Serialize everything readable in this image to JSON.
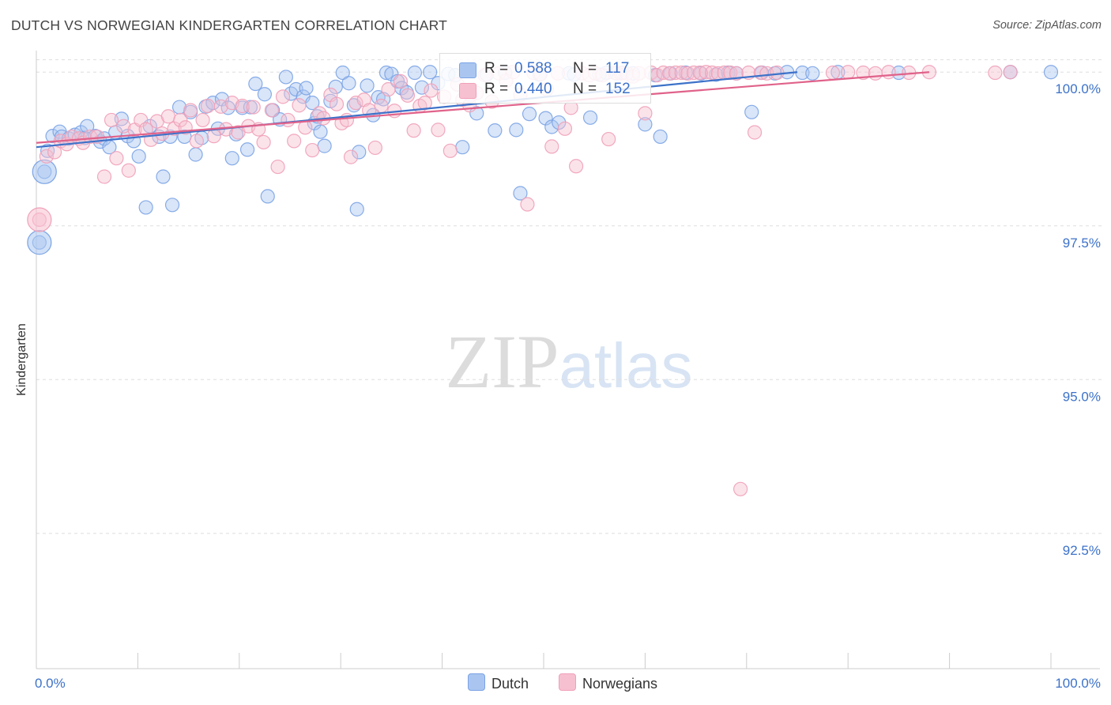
{
  "chart_data": {
    "type": "scatter",
    "title": "DUTCH VS NORWEGIAN KINDERGARTEN CORRELATION CHART",
    "source": "Source: ZipAtlas.com",
    "ylabel": "Kindergarten",
    "xlabel": "",
    "xlim": [
      0,
      100
    ],
    "ylim": [
      90.3,
      100.35
    ],
    "x_tick_labels": {
      "left": "0.0%",
      "right": "100.0%"
    },
    "y_ticks": [
      {
        "value": 100.0,
        "label": "100.0%"
      },
      {
        "value": 97.5,
        "label": "97.5%"
      },
      {
        "value": 95.0,
        "label": "95.0%"
      },
      {
        "value": 92.5,
        "label": "92.5%"
      }
    ],
    "grid": true,
    "watermark": "ZIPatlas",
    "legend": {
      "placement": "top-center",
      "r_label": "R =",
      "n_label": "N =",
      "entries": [
        {
          "series": "Dutch",
          "r": "0.588",
          "n": "117"
        },
        {
          "series": "Norwegians",
          "r": "0.440",
          "n": "152"
        }
      ]
    },
    "series": [
      {
        "name": "Dutch",
        "color": "#7aa3e5",
        "fill": "#aac6f0",
        "line_color": "#3d72c9",
        "trend": {
          "x": [
            0,
            75
          ],
          "y": [
            98.78,
            100.0
          ]
        },
        "points": [
          [
            0.3,
            97.23
          ],
          [
            0.8,
            98.38
          ],
          [
            1.1,
            98.72
          ],
          [
            1.6,
            98.96
          ],
          [
            2.3,
            99.03
          ],
          [
            2.5,
            98.95
          ],
          [
            3.2,
            98.92
          ],
          [
            3.8,
            98.98
          ],
          [
            4.4,
            99.02
          ],
          [
            4.8,
            98.93
          ],
          [
            5.0,
            99.12
          ],
          [
            5.8,
            98.96
          ],
          [
            6.3,
            98.87
          ],
          [
            6.7,
            98.92
          ],
          [
            7.2,
            98.78
          ],
          [
            7.8,
            99.02
          ],
          [
            8.4,
            99.24
          ],
          [
            9.0,
            98.96
          ],
          [
            9.6,
            98.88
          ],
          [
            10.1,
            98.63
          ],
          [
            10.8,
            97.8
          ],
          [
            11.2,
            99.12
          ],
          [
            12.1,
            98.95
          ],
          [
            12.5,
            98.3
          ],
          [
            13.2,
            98.95
          ],
          [
            13.4,
            97.84
          ],
          [
            14.1,
            99.43
          ],
          [
            14.6,
            98.95
          ],
          [
            15.2,
            99.35
          ],
          [
            15.7,
            98.66
          ],
          [
            16.3,
            98.93
          ],
          [
            16.7,
            99.44
          ],
          [
            17.4,
            99.5
          ],
          [
            17.9,
            99.08
          ],
          [
            18.3,
            99.56
          ],
          [
            18.9,
            99.42
          ],
          [
            19.3,
            98.6
          ],
          [
            19.7,
            98.99
          ],
          [
            20.3,
            99.42
          ],
          [
            20.8,
            98.74
          ],
          [
            21.1,
            99.43
          ],
          [
            21.6,
            99.81
          ],
          [
            22.5,
            99.64
          ],
          [
            22.8,
            97.98
          ],
          [
            23.3,
            99.38
          ],
          [
            24.0,
            99.23
          ],
          [
            24.6,
            99.92
          ],
          [
            25.1,
            99.65
          ],
          [
            25.6,
            99.72
          ],
          [
            26.3,
            99.6
          ],
          [
            26.6,
            99.74
          ],
          [
            27.2,
            99.5
          ],
          [
            27.4,
            99.17
          ],
          [
            27.7,
            99.28
          ],
          [
            28.0,
            99.03
          ],
          [
            28.4,
            98.8
          ],
          [
            29.0,
            99.53
          ],
          [
            29.5,
            99.76
          ],
          [
            30.2,
            99.99
          ],
          [
            30.8,
            99.82
          ],
          [
            31.3,
            99.46
          ],
          [
            31.6,
            97.77
          ],
          [
            31.8,
            98.7
          ],
          [
            32.6,
            99.78
          ],
          [
            33.2,
            99.3
          ],
          [
            33.7,
            99.59
          ],
          [
            34.2,
            99.56
          ],
          [
            34.5,
            99.99
          ],
          [
            35.0,
            99.97
          ],
          [
            35.6,
            99.85
          ],
          [
            36.0,
            99.74
          ],
          [
            36.5,
            99.67
          ],
          [
            37.3,
            99.99
          ],
          [
            38.0,
            99.75
          ],
          [
            38.8,
            100.0
          ],
          [
            39.6,
            99.82
          ],
          [
            40.6,
            99.97
          ],
          [
            41.3,
            99.95
          ],
          [
            42.0,
            98.78
          ],
          [
            42.8,
            99.62
          ],
          [
            43.4,
            99.33
          ],
          [
            44.4,
            99.96
          ],
          [
            45.2,
            99.05
          ],
          [
            46.2,
            99.99
          ],
          [
            47.3,
            99.06
          ],
          [
            47.7,
            98.03
          ],
          [
            48.6,
            99.32
          ],
          [
            49.6,
            99.96
          ],
          [
            50.2,
            99.25
          ],
          [
            50.8,
            99.11
          ],
          [
            51.5,
            99.18
          ],
          [
            52.5,
            99.98
          ],
          [
            53.0,
            99.96
          ],
          [
            54.6,
            99.26
          ],
          [
            55.5,
            99.96
          ],
          [
            56.2,
            99.99
          ],
          [
            57.2,
            99.98
          ],
          [
            57.8,
            99.99
          ],
          [
            58.8,
            99.98
          ],
          [
            60.0,
            99.15
          ],
          [
            61.0,
            99.95
          ],
          [
            61.5,
            98.95
          ],
          [
            62.5,
            99.98
          ],
          [
            64.0,
            99.99
          ],
          [
            65.5,
            99.98
          ],
          [
            67.0,
            99.96
          ],
          [
            68.2,
            99.99
          ],
          [
            69.0,
            99.98
          ],
          [
            70.5,
            99.35
          ],
          [
            71.5,
            99.99
          ],
          [
            72.8,
            99.98
          ],
          [
            74.0,
            100.0
          ],
          [
            75.5,
            99.99
          ],
          [
            76.5,
            99.98
          ],
          [
            79.0,
            100.0
          ],
          [
            85.0,
            99.99
          ],
          [
            96.0,
            100.0
          ],
          [
            100.0,
            100.0
          ]
        ],
        "big_points": [
          [
            0.3,
            97.23
          ],
          [
            0.8,
            98.38
          ]
        ]
      },
      {
        "name": "Norwegians",
        "color": "#f0a0b8",
        "fill": "#f7c0d0",
        "line_color": "#e0628a",
        "trend": {
          "x": [
            0,
            88
          ],
          "y": [
            98.85,
            100.0
          ]
        },
        "points": [
          [
            0.3,
            97.6
          ],
          [
            1.0,
            98.63
          ],
          [
            1.8,
            98.7
          ],
          [
            2.4,
            98.88
          ],
          [
            3.0,
            98.83
          ],
          [
            3.5,
            98.95
          ],
          [
            4.2,
            98.92
          ],
          [
            4.6,
            98.85
          ],
          [
            5.3,
            98.95
          ],
          [
            6.0,
            98.95
          ],
          [
            6.7,
            98.3
          ],
          [
            7.4,
            99.22
          ],
          [
            7.9,
            98.6
          ],
          [
            8.6,
            99.12
          ],
          [
            9.1,
            98.4
          ],
          [
            9.7,
            99.06
          ],
          [
            10.3,
            99.22
          ],
          [
            10.8,
            99.07
          ],
          [
            11.3,
            98.9
          ],
          [
            11.9,
            99.2
          ],
          [
            12.4,
            99.0
          ],
          [
            13.0,
            99.28
          ],
          [
            13.6,
            99.08
          ],
          [
            14.2,
            99.22
          ],
          [
            14.7,
            99.1
          ],
          [
            15.2,
            99.38
          ],
          [
            15.8,
            98.88
          ],
          [
            16.4,
            99.22
          ],
          [
            16.9,
            99.45
          ],
          [
            17.5,
            98.96
          ],
          [
            18.2,
            99.44
          ],
          [
            18.7,
            99.07
          ],
          [
            19.3,
            99.5
          ],
          [
            19.9,
            99.02
          ],
          [
            20.3,
            99.45
          ],
          [
            20.9,
            99.12
          ],
          [
            21.4,
            99.43
          ],
          [
            21.9,
            99.07
          ],
          [
            22.4,
            98.86
          ],
          [
            23.2,
            99.38
          ],
          [
            23.8,
            98.46
          ],
          [
            24.3,
            99.6
          ],
          [
            24.8,
            99.22
          ],
          [
            25.4,
            98.88
          ],
          [
            25.9,
            99.46
          ],
          [
            26.5,
            99.1
          ],
          [
            27.2,
            98.73
          ],
          [
            27.9,
            99.33
          ],
          [
            28.3,
            99.25
          ],
          [
            29.0,
            99.63
          ],
          [
            29.6,
            99.48
          ],
          [
            30.1,
            99.17
          ],
          [
            30.6,
            99.22
          ],
          [
            31.0,
            98.62
          ],
          [
            31.5,
            99.5
          ],
          [
            32.3,
            99.55
          ],
          [
            32.8,
            99.38
          ],
          [
            33.4,
            98.77
          ],
          [
            34.0,
            99.45
          ],
          [
            34.7,
            99.72
          ],
          [
            35.3,
            99.37
          ],
          [
            35.9,
            99.85
          ],
          [
            36.6,
            99.62
          ],
          [
            37.2,
            99.05
          ],
          [
            37.8,
            99.45
          ],
          [
            38.3,
            99.5
          ],
          [
            38.9,
            99.7
          ],
          [
            39.6,
            99.06
          ],
          [
            40.2,
            99.6
          ],
          [
            40.8,
            98.72
          ],
          [
            41.5,
            99.8
          ],
          [
            42.0,
            99.55
          ],
          [
            42.7,
            99.46
          ],
          [
            43.4,
            99.66
          ],
          [
            44.2,
            99.95
          ],
          [
            44.9,
            99.52
          ],
          [
            45.6,
            99.98
          ],
          [
            46.3,
            99.86
          ],
          [
            47.0,
            100.0
          ],
          [
            47.7,
            99.63
          ],
          [
            48.4,
            97.85
          ],
          [
            49.0,
            99.99
          ],
          [
            49.7,
            99.97
          ],
          [
            50.3,
            99.72
          ],
          [
            50.8,
            98.79
          ],
          [
            51.4,
            99.98
          ],
          [
            52.1,
            99.08
          ],
          [
            52.7,
            99.42
          ],
          [
            53.2,
            98.47
          ],
          [
            53.8,
            99.98
          ],
          [
            54.5,
            99.95
          ],
          [
            55.1,
            99.98
          ],
          [
            55.8,
            99.95
          ],
          [
            56.4,
            98.91
          ],
          [
            57.0,
            99.99
          ],
          [
            57.6,
            99.98
          ],
          [
            58.2,
            99.98
          ],
          [
            58.8,
            99.93
          ],
          [
            59.4,
            99.98
          ],
          [
            60.0,
            99.33
          ],
          [
            60.6,
            99.99
          ],
          [
            61.2,
            99.95
          ],
          [
            61.8,
            99.99
          ],
          [
            62.4,
            99.98
          ],
          [
            63.0,
            99.99
          ],
          [
            63.6,
            99.99
          ],
          [
            64.2,
            99.98
          ],
          [
            64.8,
            99.99
          ],
          [
            65.4,
            99.99
          ],
          [
            66.0,
            100.0
          ],
          [
            66.6,
            99.99
          ],
          [
            67.2,
            99.98
          ],
          [
            67.8,
            99.99
          ],
          [
            68.4,
            99.99
          ],
          [
            69.0,
            99.98
          ],
          [
            69.4,
            93.22
          ],
          [
            70.2,
            99.99
          ],
          [
            70.8,
            99.02
          ],
          [
            71.4,
            99.99
          ],
          [
            72.0,
            99.98
          ],
          [
            73.0,
            99.99
          ],
          [
            78.5,
            99.99
          ],
          [
            80.0,
            100.0
          ],
          [
            81.5,
            99.99
          ],
          [
            82.7,
            99.98
          ],
          [
            84.0,
            100.0
          ],
          [
            86.0,
            99.99
          ],
          [
            88.0,
            100.0
          ],
          [
            94.5,
            99.99
          ],
          [
            96.0,
            100.0
          ]
        ],
        "big_points": [
          [
            0.3,
            97.6
          ]
        ]
      }
    ]
  },
  "bottom_legend": [
    {
      "label": "Dutch"
    },
    {
      "label": "Norwegians"
    }
  ]
}
